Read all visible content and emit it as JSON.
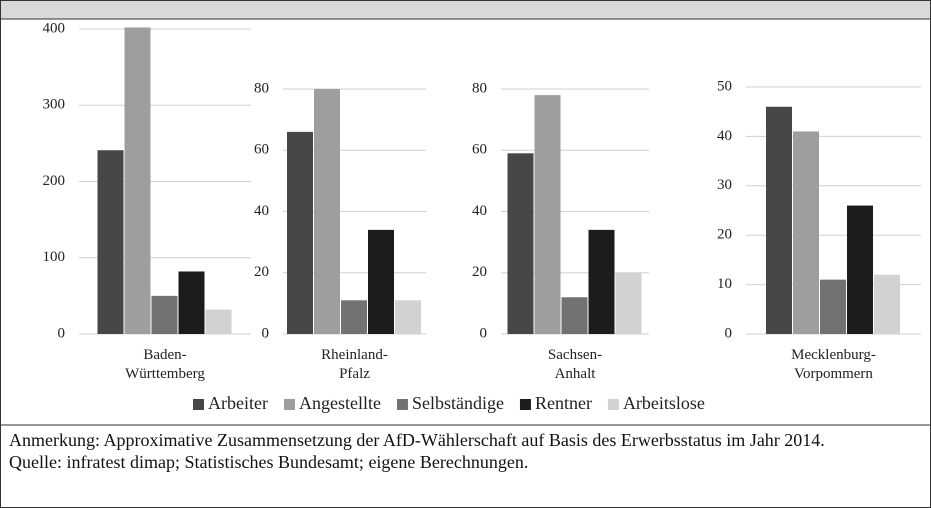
{
  "chart_data": [
    {
      "type": "bar",
      "group": "Baden-Württemberg",
      "values": [
        241,
        402,
        50,
        82,
        32
      ],
      "ylim": [
        0,
        400
      ],
      "yticks": [
        0,
        100,
        200,
        300,
        400
      ],
      "grid": true
    },
    {
      "type": "bar",
      "group": "Rheinland-Pfalz",
      "values": [
        66,
        80,
        11,
        34,
        11
      ],
      "ylim": [
        0,
        80
      ],
      "yticks": [
        0,
        20,
        40,
        60,
        80
      ],
      "grid": true
    },
    {
      "type": "bar",
      "group": "Sachsen-Anhalt",
      "values": [
        59,
        78,
        12,
        34,
        20
      ],
      "ylim": [
        0,
        80
      ],
      "yticks": [
        0,
        20,
        40,
        60,
        80
      ],
      "grid": true
    },
    {
      "type": "bar",
      "group": "Mecklenburg-Vorpommern",
      "values": [
        46,
        41,
        11,
        26,
        12
      ],
      "ylim": [
        0,
        50
      ],
      "yticks": [
        0,
        10,
        20,
        30,
        40,
        50
      ],
      "grid": true
    }
  ],
  "legend": [
    {
      "name": "Arbeiter",
      "color": "#474747"
    },
    {
      "name": "Angestellte",
      "color": "#9e9e9e"
    },
    {
      "name": "Selbständige",
      "color": "#727272"
    },
    {
      "name": "Rentner",
      "color": "#1c1c1c"
    },
    {
      "name": "Arbeitslose",
      "color": "#d2d2d2"
    }
  ],
  "notes": [
    "Anmerkung: Approximative Zusammensetzung der AfD-Wählerschaft auf Basis des Erwerbsstatus im Jahr 2014.",
    "Quelle: infratest dimap; Statistisches Bundesamt; eigene Berechnungen."
  ]
}
